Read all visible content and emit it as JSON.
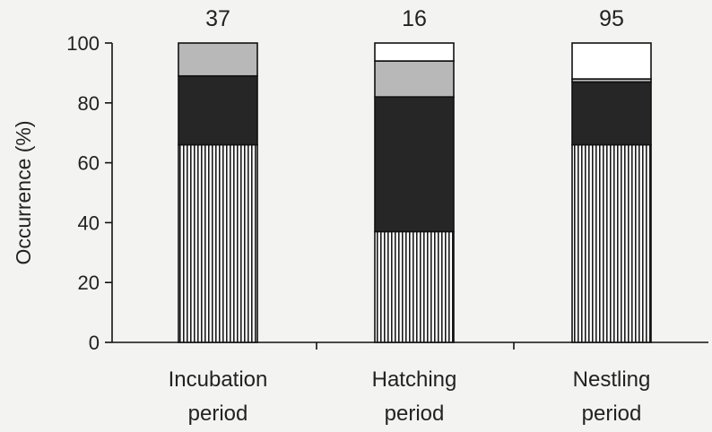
{
  "chart_data": {
    "type": "bar",
    "stacked": true,
    "title": "",
    "xlabel": "",
    "ylabel": "Occurrence (%)",
    "ylim": [
      0,
      100
    ],
    "yticks": [
      0,
      20,
      40,
      60,
      80,
      100
    ],
    "grid": false,
    "legend": "none",
    "categories": [
      [
        "Incubation",
        "period"
      ],
      [
        "Hatching",
        "period"
      ],
      [
        "Nestling",
        "period"
      ]
    ],
    "sample_sizes": [
      "37",
      "16",
      "95"
    ],
    "series": [
      {
        "fill": "vertical-hatch",
        "values": [
          66,
          37,
          66
        ]
      },
      {
        "fill": "#262626",
        "values": [
          23,
          45,
          21
        ]
      },
      {
        "fill": "#b8b8b8",
        "values": [
          11,
          12,
          1
        ]
      },
      {
        "fill": "#ffffff",
        "values": [
          0,
          6,
          12
        ]
      }
    ]
  }
}
